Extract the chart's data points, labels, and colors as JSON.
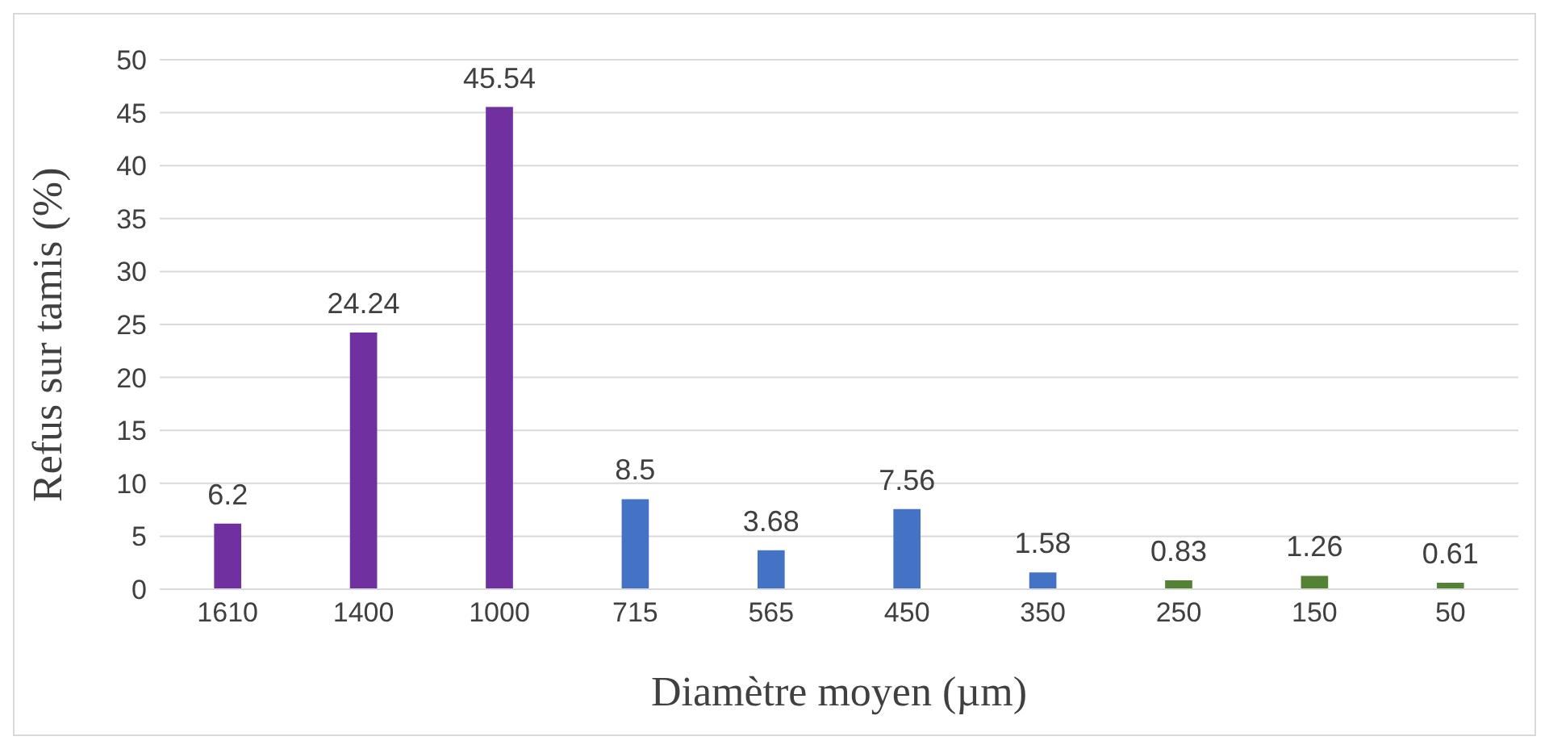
{
  "chart_data": {
    "type": "bar",
    "xlabel": "Diamètre moyen (µm)",
    "ylabel": "Refus sur tamis (%)",
    "categories": [
      "1610",
      "1400",
      "1000",
      "715",
      "565",
      "450",
      "350",
      "250",
      "150",
      "50"
    ],
    "values": [
      6.2,
      24.24,
      45.54,
      8.5,
      3.68,
      7.56,
      1.58,
      0.83,
      1.26,
      0.61
    ],
    "colors": [
      "#7030a0",
      "#7030a0",
      "#7030a0",
      "#4472c4",
      "#4472c4",
      "#4472c4",
      "#4472c4",
      "#548235",
      "#548235",
      "#548235"
    ],
    "ylim": [
      0,
      50
    ],
    "yticks": [
      0,
      5,
      10,
      15,
      20,
      25,
      30,
      35,
      40,
      45,
      50
    ],
    "grid": "y",
    "data_labels": true
  }
}
